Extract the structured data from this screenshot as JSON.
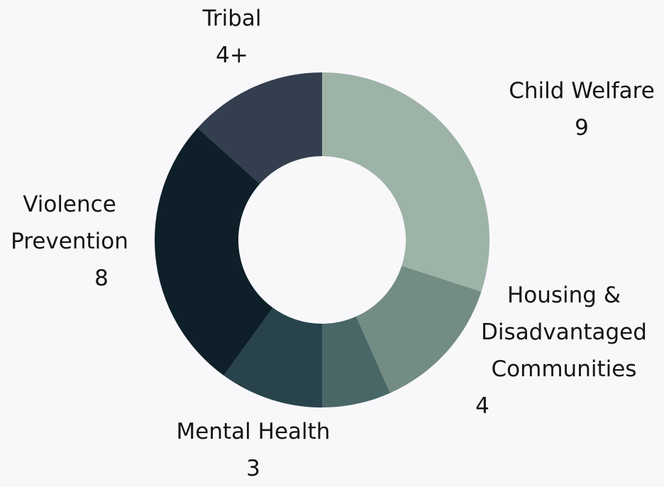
{
  "chart_data": {
    "type": "pie",
    "variant": "donut",
    "title": "",
    "legend": "none",
    "slices": [
      {
        "name": "Child Welfare",
        "value": 9,
        "value_label": "9",
        "color": "#9db3a7"
      },
      {
        "name": "Housing & Disadvantaged Communities",
        "value": 4,
        "value_label": "4",
        "color": "#738c84"
      },
      {
        "name": "",
        "value": 2,
        "value_label": "",
        "color": "#4a6767"
      },
      {
        "name": "Mental Health",
        "value": 3,
        "value_label": "3",
        "color": "#28434b"
      },
      {
        "name": "Violence Prevention",
        "value": 8,
        "value_label": "8",
        "color": "#0e1f29"
      },
      {
        "name": "Tribal",
        "value": 4,
        "value_label": "4+",
        "color": "#333e4e"
      }
    ]
  },
  "labels": {
    "tribal": {
      "line1": "Tribal",
      "value": "4+"
    },
    "child_welfare": {
      "line1": "Child Welfare",
      "value": "9"
    },
    "violence_prevention": {
      "line1": "Violence",
      "line2": "Prevention",
      "value": "8"
    },
    "housing": {
      "line1": "Housing &",
      "line2": "Disadvantaged",
      "line3": "Communities",
      "value": "4"
    },
    "mental_health": {
      "line1": "Mental Health",
      "value": "3"
    }
  }
}
